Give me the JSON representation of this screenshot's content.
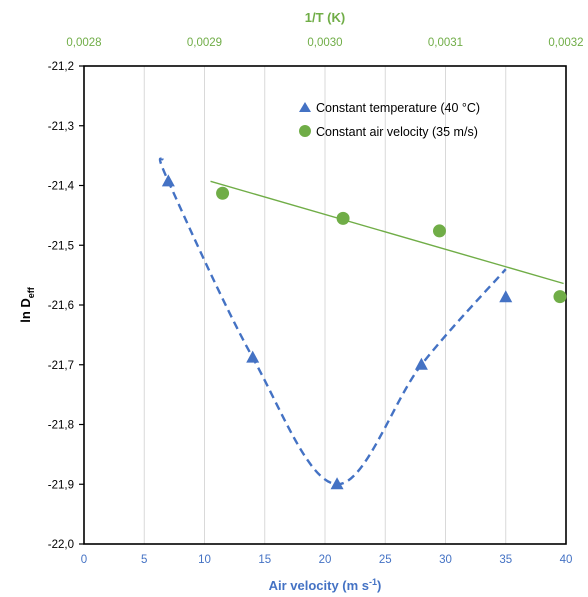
{
  "chart_data": {
    "type": "scatter",
    "title": "",
    "xlabel": "Air velocity (m s⁻¹)",
    "xlabel_main": "Air velocity (m s",
    "xlabel_sup": "-1",
    "xlabel_end": ")",
    "x2label": "1/T (K)",
    "ylabel_main": "ln D",
    "ylabel_sub": "eff",
    "xlim": [
      0,
      40
    ],
    "x2lim": [
      0.0028,
      0.0032
    ],
    "ylim": [
      -22.0,
      -21.2
    ],
    "x_ticks": [
      "0",
      "5",
      "10",
      "15",
      "20",
      "25",
      "30",
      "35",
      "40"
    ],
    "x2_ticks": [
      "0,0028",
      "0,0029",
      "0,0030",
      "0,0031",
      "0,0032"
    ],
    "y_ticks": [
      "-21,2",
      "-21,3",
      "-21,4",
      "-21,5",
      "-21,6",
      "-21,7",
      "-21,8",
      "-21,9",
      "-22,0"
    ],
    "grid": "vertical",
    "legend_position": "top-right",
    "colors": {
      "blue": "#4472C4",
      "green": "#70AD47",
      "axis_text": "#000000"
    },
    "series": [
      {
        "name": "Constant temperature (40 °C)",
        "axis": "bottom",
        "marker": "triangle",
        "color": "#4472C4",
        "x": [
          7,
          14,
          21,
          28,
          35
        ],
        "y": [
          -21.393,
          -21.688,
          -21.9,
          -21.7,
          -21.587
        ],
        "fit": {
          "kind": "polynomial",
          "x_range": [
            6.5,
            35
          ],
          "knots_x": [
            6.5,
            7,
            14,
            21,
            28,
            35
          ],
          "knots_y": [
            -21.355,
            -21.393,
            -21.688,
            -21.9,
            -21.7,
            -21.54
          ]
        }
      },
      {
        "name": "Constant air velocity (35 m/s)",
        "axis": "top",
        "marker": "circle",
        "color": "#70AD47",
        "x": [
          0.002915,
          0.003015,
          0.003095,
          0.003195
        ],
        "y": [
          -21.413,
          -21.455,
          -21.476,
          -21.586
        ],
        "fit": {
          "kind": "linear",
          "x_range": [
            0.002905,
            0.003198
          ],
          "y_range": [
            -21.393,
            -21.564
          ]
        }
      }
    ]
  }
}
